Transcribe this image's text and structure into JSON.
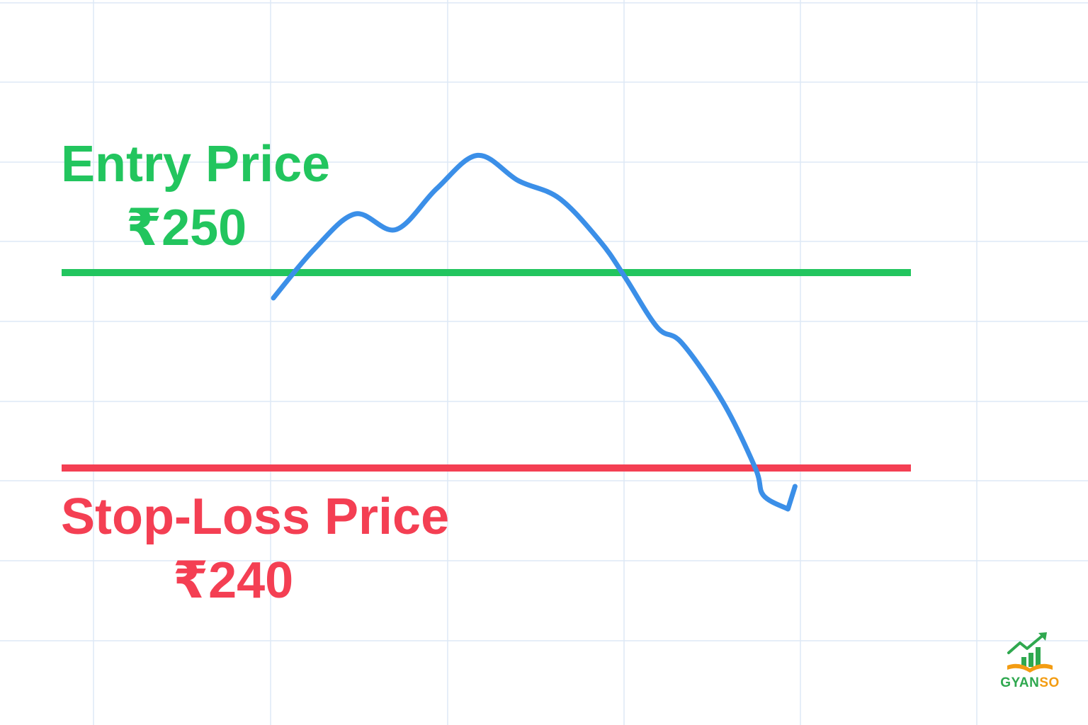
{
  "colors": {
    "entry": "#22c55e",
    "stop_loss": "#f43f53",
    "price_line": "#3b8fe8",
    "grid": "#dde9f5",
    "brand_green": "#2fa84f",
    "brand_orange": "#f39c12"
  },
  "brand": {
    "part1": "GYAN",
    "part2": "SO",
    "icon": "growth-chart-book-icon"
  },
  "chart_data": {
    "type": "line",
    "title": "",
    "xlabel": "",
    "ylabel": "",
    "grid": true,
    "ylim": [
      236,
      256
    ],
    "xlim": [
      0,
      12
    ],
    "series": [
      {
        "x": [
          3,
          3.5,
          4,
          4.5,
          5,
          5.5,
          6,
          6.5,
          7,
          7.3,
          7.7,
          8,
          8.5,
          8.9,
          9,
          9.3
        ],
        "y": [
          248.7,
          251.2,
          253.0,
          252.2,
          254.3,
          256.0,
          254.7,
          253.8,
          251.6,
          249.8,
          247.2,
          246.4,
          243.4,
          240.0,
          238.6,
          237.9
        ]
      }
    ],
    "reference_lines": [
      {
        "id": "entry",
        "label": "Entry Price",
        "value_label": "₹250",
        "y": 250
      },
      {
        "id": "stop_loss",
        "label": "Stop-Loss Price",
        "value_label": "₹240",
        "y": 240
      }
    ]
  }
}
